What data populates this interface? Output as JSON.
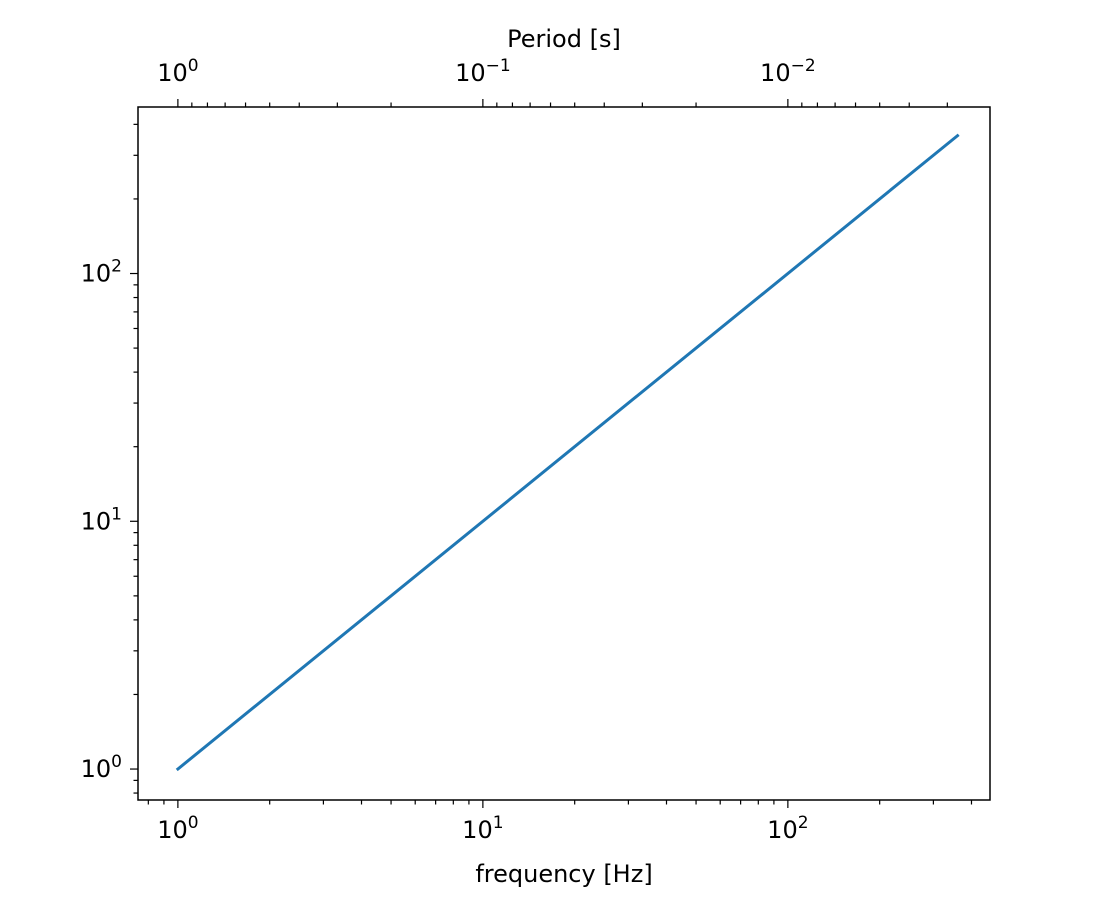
{
  "chart_data": {
    "type": "line",
    "title": "",
    "xlabel": "frequency [Hz]",
    "secondary_xlabel": "Period [s]",
    "ylabel": "",
    "xscale": "log",
    "yscale": "log",
    "secondary_xscale": "log",
    "xlim": [
      0.74,
      460
    ],
    "ylim": [
      0.75,
      470
    ],
    "grid": false,
    "x_tick_labels": [
      {
        "value": 1,
        "base": "10",
        "exp": "0"
      },
      {
        "value": 10,
        "base": "10",
        "exp": "1"
      },
      {
        "value": 100,
        "base": "10",
        "exp": "2"
      }
    ],
    "y_tick_labels": [
      {
        "value": 1,
        "base": "10",
        "exp": "0"
      },
      {
        "value": 10,
        "base": "10",
        "exp": "1"
      },
      {
        "value": 100,
        "base": "10",
        "exp": "2"
      }
    ],
    "secondary_x_tick_labels": [
      {
        "value": 1,
        "base": "10",
        "exp": "0"
      },
      {
        "value": 0.1,
        "base": "10",
        "exp": "−1"
      },
      {
        "value": 0.01,
        "base": "10",
        "exp": "−2"
      }
    ],
    "series": [
      {
        "color": "#1f77b4",
        "x": [
          1,
          360
        ],
        "y": [
          1,
          360
        ]
      }
    ]
  }
}
